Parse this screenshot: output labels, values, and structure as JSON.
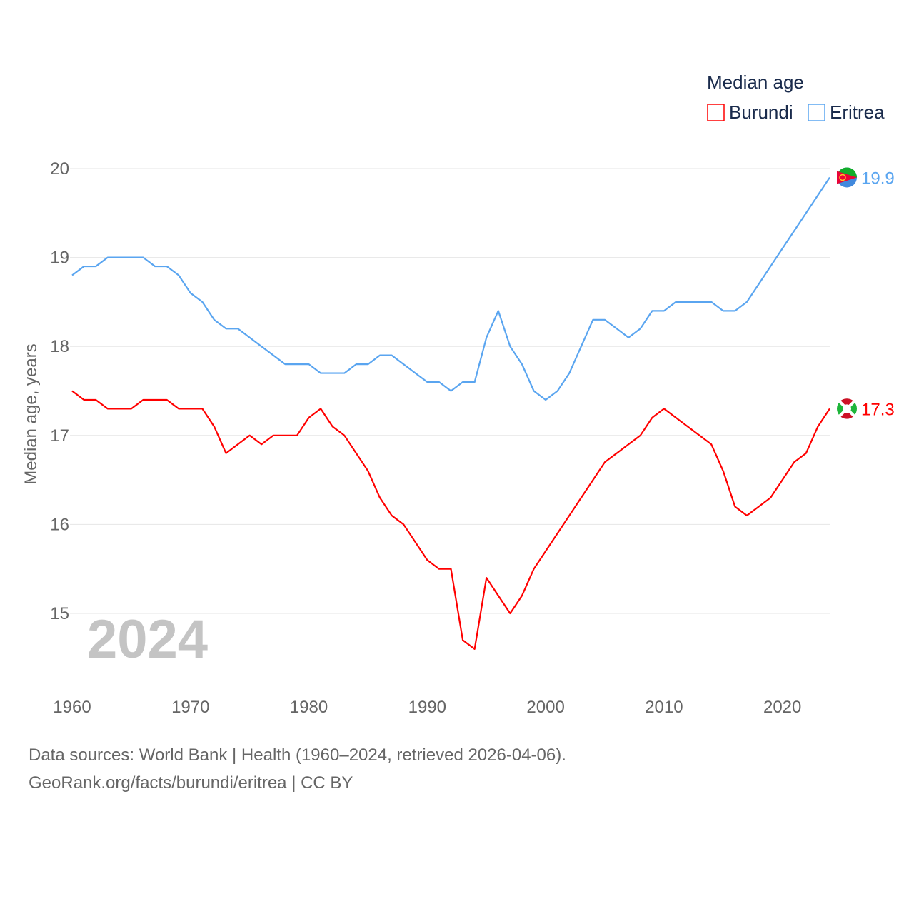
{
  "chart_data": {
    "type": "line",
    "title": "",
    "xlabel": "",
    "ylabel": "Median age, years",
    "xlim": [
      1960,
      2024
    ],
    "ylim": [
      14.4,
      20
    ],
    "x_ticks": [
      1960,
      1970,
      1980,
      1990,
      2000,
      2010,
      2020
    ],
    "y_ticks": [
      15,
      16,
      17,
      18,
      19,
      20
    ],
    "grid": true,
    "legend_title": "Median age",
    "legend_placement": "top-right",
    "year_watermark": "2024",
    "x": [
      1960,
      1961,
      1962,
      1963,
      1964,
      1965,
      1966,
      1967,
      1968,
      1969,
      1970,
      1971,
      1972,
      1973,
      1974,
      1975,
      1976,
      1977,
      1978,
      1979,
      1980,
      1981,
      1982,
      1983,
      1984,
      1985,
      1986,
      1987,
      1988,
      1989,
      1990,
      1991,
      1992,
      1993,
      1994,
      1995,
      1996,
      1997,
      1998,
      1999,
      2000,
      2001,
      2002,
      2003,
      2004,
      2005,
      2006,
      2007,
      2008,
      2009,
      2010,
      2011,
      2012,
      2013,
      2014,
      2015,
      2016,
      2017,
      2018,
      2019,
      2020,
      2021,
      2022,
      2023,
      2024
    ],
    "series": [
      {
        "name": "Burundi",
        "color": "#ff0000",
        "end_label": "17.3",
        "values": [
          17.5,
          17.4,
          17.4,
          17.3,
          17.3,
          17.3,
          17.4,
          17.4,
          17.4,
          17.3,
          17.3,
          17.3,
          17.1,
          16.8,
          16.9,
          17.0,
          16.9,
          17.0,
          17.0,
          17.0,
          17.2,
          17.3,
          17.1,
          17.0,
          16.8,
          16.6,
          16.3,
          16.1,
          16.0,
          15.8,
          15.6,
          15.5,
          15.5,
          14.7,
          14.6,
          15.4,
          15.2,
          15.0,
          15.2,
          15.5,
          15.7,
          15.9,
          16.1,
          16.3,
          16.5,
          16.7,
          16.8,
          16.9,
          17.0,
          17.2,
          17.3,
          17.2,
          17.1,
          17.0,
          16.9,
          16.6,
          16.2,
          16.1,
          16.2,
          16.3,
          16.5,
          16.7,
          16.8,
          17.1,
          17.3
        ]
      },
      {
        "name": "Eritrea",
        "color": "#5aa5f0",
        "end_label": "19.9",
        "values": [
          18.8,
          18.9,
          18.9,
          19.0,
          19.0,
          19.0,
          19.0,
          18.9,
          18.9,
          18.8,
          18.6,
          18.5,
          18.3,
          18.2,
          18.2,
          18.1,
          18.0,
          17.9,
          17.8,
          17.8,
          17.8,
          17.7,
          17.7,
          17.7,
          17.8,
          17.8,
          17.9,
          17.9,
          17.8,
          17.7,
          17.6,
          17.6,
          17.5,
          17.6,
          17.6,
          18.1,
          18.4,
          18.0,
          17.8,
          17.5,
          17.4,
          17.5,
          17.7,
          18.0,
          18.3,
          18.3,
          18.2,
          18.1,
          18.2,
          18.4,
          18.4,
          18.5,
          18.5,
          18.5,
          18.5,
          18.4,
          18.4,
          18.5,
          18.7,
          18.9,
          19.1,
          19.3,
          19.5,
          19.7,
          19.9
        ]
      }
    ]
  },
  "footer": {
    "line1": "Data sources: World Bank | Health (1960–2024, retrieved 2026-04-06).",
    "line2": "GeoRank.org/facts/burundi/eritrea | CC BY"
  }
}
